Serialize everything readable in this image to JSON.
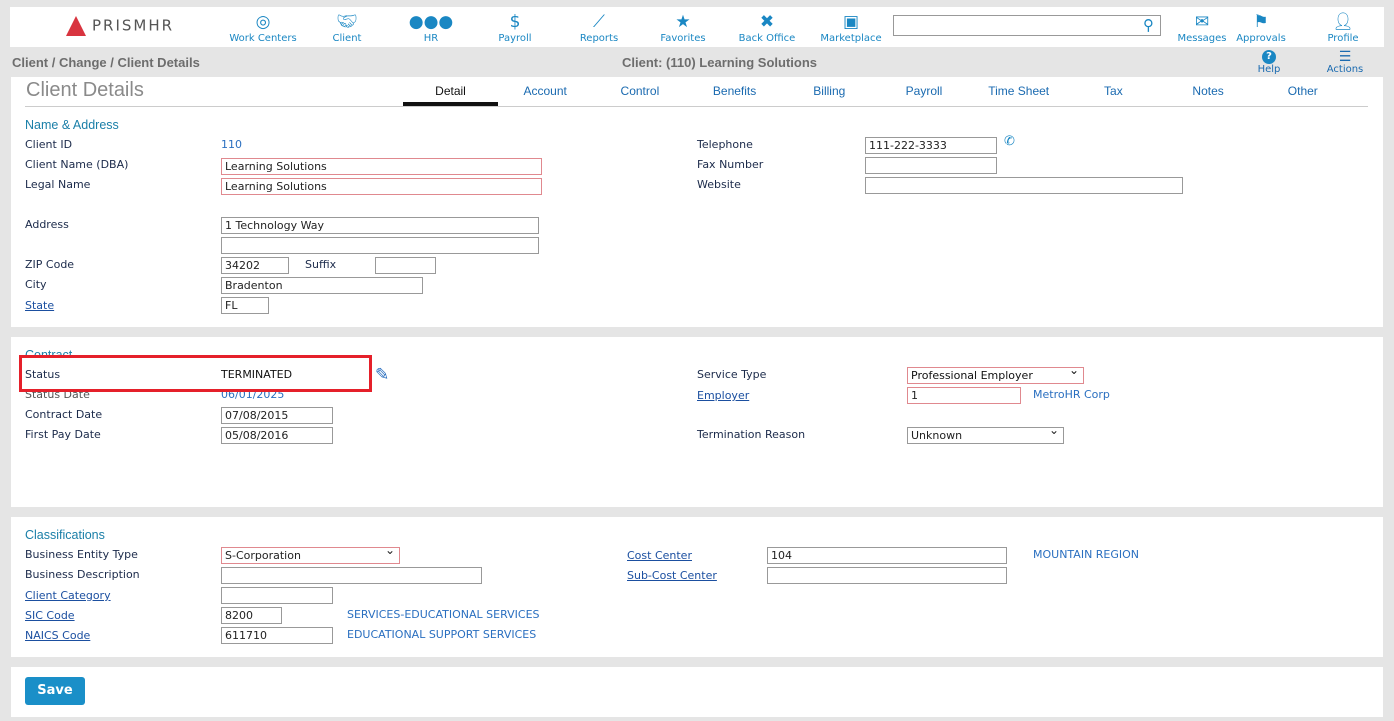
{
  "header": {
    "logo": "PRISMHR",
    "nav": [
      {
        "label": "Work Centers",
        "icon": "target-icon"
      },
      {
        "label": "Client",
        "icon": "handshake-icon"
      },
      {
        "label": "HR",
        "icon": "users-icon"
      },
      {
        "label": "Payroll",
        "icon": "dollar-icon"
      },
      {
        "label": "Reports",
        "icon": "chart-icon"
      },
      {
        "label": "Favorites",
        "icon": "star-icon"
      },
      {
        "label": "Back Office",
        "icon": "tools-icon"
      },
      {
        "label": "Marketplace",
        "icon": "store-icon"
      }
    ],
    "search_placeholder": "",
    "right": [
      {
        "label": "Messages"
      },
      {
        "label": "Approvals"
      },
      {
        "label": "Profile"
      }
    ]
  },
  "breadcrumb": "Client / Change / Client Details",
  "client_title": "Client: (110) Learning Solutions",
  "help": "Help",
  "actions": "Actions",
  "page_title": "Client Details",
  "tabs": [
    "Detail",
    "Account",
    "Control",
    "Benefits",
    "Billing",
    "Payroll",
    "Time Sheet",
    "Tax",
    "Notes",
    "Other"
  ],
  "name_address": {
    "title": "Name & Address",
    "client_id_label": "Client ID",
    "client_id": "110",
    "dba_label": "Client Name (DBA)",
    "dba": "Learning Solutions",
    "legal_label": "Legal Name",
    "legal": "Learning Solutions",
    "address_label": "Address",
    "address1": "1 Technology Way",
    "address2": "",
    "zip_label": "ZIP Code",
    "zip": "34202",
    "suffix_label": "Suffix",
    "suffix": "",
    "city_label": "City",
    "city": "Bradenton",
    "state_label": "State",
    "state": "FL",
    "telephone_label": "Telephone",
    "telephone": "111-222-3333",
    "fax_label": "Fax Number",
    "fax": "",
    "website_label": "Website",
    "website": ""
  },
  "contract": {
    "title": "Contract",
    "status_label": "Status",
    "status": "TERMINATED",
    "status_date_label": "Status Date",
    "status_date": "06/01/2025",
    "contract_date_label": "Contract Date",
    "contract_date": "07/08/2015",
    "first_pay_label": "First Pay Date",
    "first_pay": "05/08/2016",
    "service_type_label": "Service Type",
    "service_type": "Professional Employer",
    "employer_label": "Employer",
    "employer": "1",
    "employer_name": "MetroHR Corp",
    "termination_label": "Termination Reason",
    "termination": "Unknown"
  },
  "classifications": {
    "title": "Classifications",
    "entity_label": "Business Entity Type",
    "entity": "S-Corporation",
    "desc_label": "Business Description",
    "desc": "",
    "category_label": "Client Category",
    "category": "",
    "sic_label": "SIC Code",
    "sic": "8200",
    "sic_desc": "SERVICES-EDUCATIONAL SERVICES",
    "naics_label": "NAICS Code",
    "naics": "611710",
    "naics_desc": "EDUCATIONAL SUPPORT SERVICES",
    "cost_center_label": "Cost Center",
    "cost_center": "104",
    "cost_center_desc": "MOUNTAIN REGION",
    "sub_cost_label": "Sub-Cost Center",
    "sub_cost": ""
  },
  "save": "Save",
  "colors": {
    "accent": "#1a87c3",
    "highlight": "#e5202a",
    "save": "#1a8fc8"
  }
}
